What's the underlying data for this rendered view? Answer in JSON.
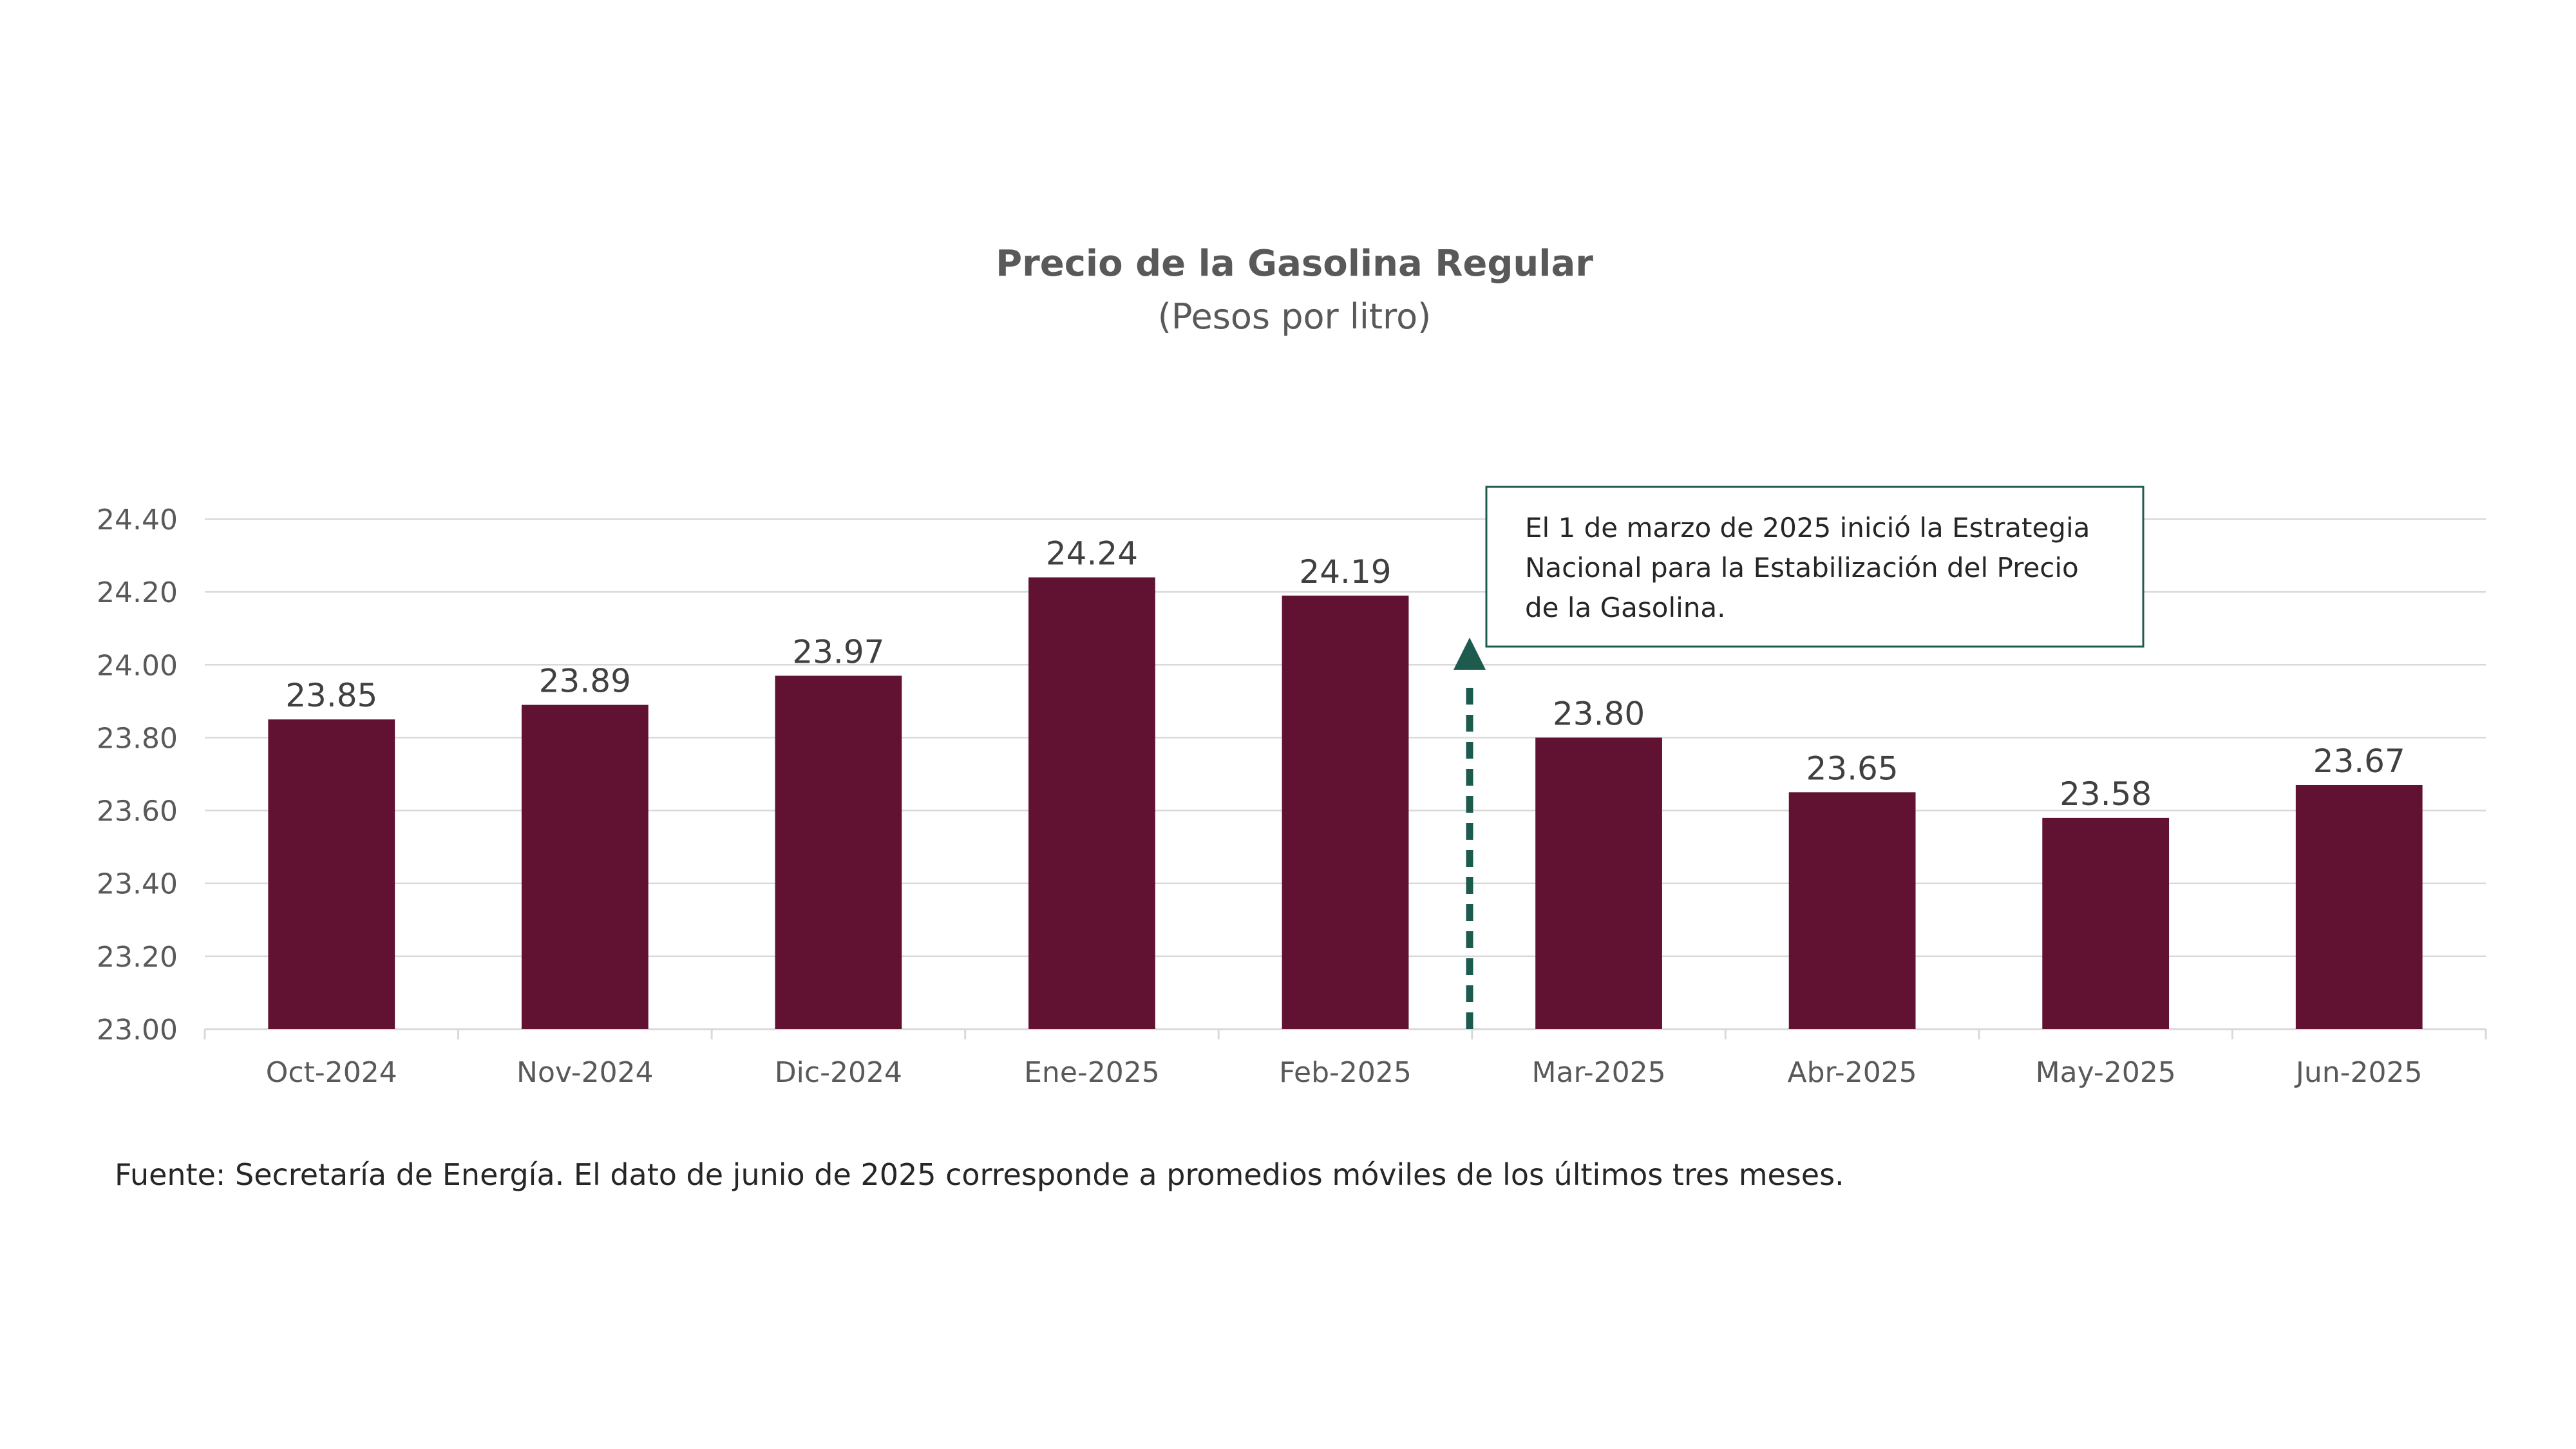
{
  "colors": {
    "bar": "#611232",
    "arrow": "#1e5b4f",
    "note_border": "#1e5b4f",
    "grid": "#d9d9d9",
    "text": "#595959"
  },
  "source_text": "Fuente: Secretaría de Energía. El dato de junio de 2025 corresponde  a promedios móviles de los últimos tres meses.",
  "chart_data": {
    "type": "bar",
    "title": "Precio de la Gasolina Regular",
    "subtitle": "(Pesos  por litro)",
    "categories": [
      "Oct-2024",
      "Nov-2024",
      "Dic-2024",
      "Ene-2025",
      "Feb-2025",
      "Mar-2025",
      "Abr-2025",
      "May-2025",
      "Jun-2025"
    ],
    "values": [
      23.85,
      23.89,
      23.97,
      24.24,
      24.19,
      23.8,
      23.65,
      23.58,
      23.67
    ],
    "value_labels": [
      "23.85",
      "23.89",
      "23.97",
      "24.24",
      "24.19",
      "23.80",
      "23.65",
      "23.58",
      "23.67"
    ],
    "ylim": [
      23.0,
      24.4
    ],
    "yticks": [
      "23.00",
      "23.20",
      "23.40",
      "23.60",
      "23.80",
      "24.00",
      "24.20",
      "24.40"
    ],
    "grid": true,
    "annotation": {
      "lines": [
        "El 1 de marzo de 2025 inició la Estrategia",
        "Nacional  para la Estabilización  del Precio",
        "de la Gasolina."
      ],
      "arrow": "dashed upward arrow between Feb-2025 and Mar-2025"
    }
  }
}
